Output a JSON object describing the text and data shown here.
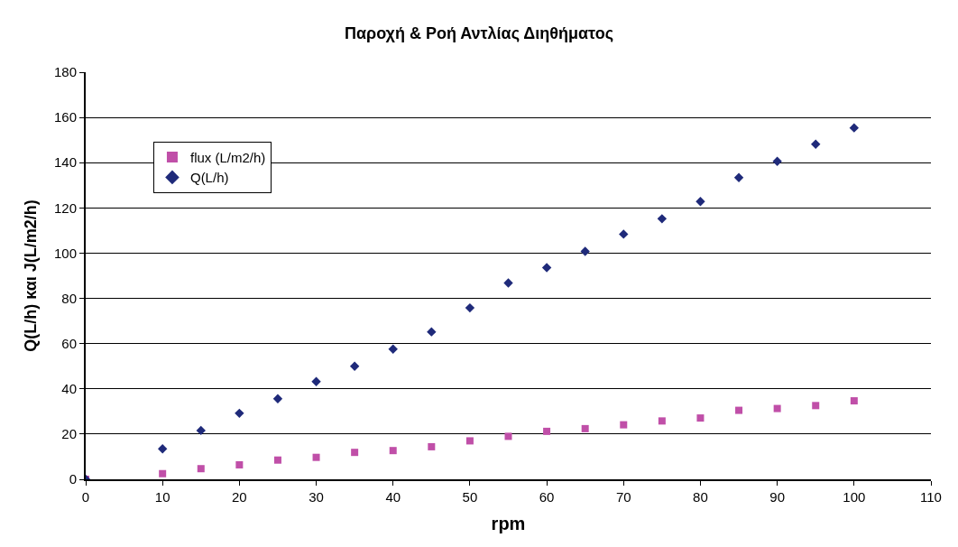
{
  "chart_data": {
    "type": "scatter",
    "title": "Παροχή & Ροή Αντλίας Διηθήματος",
    "xlabel": "rpm",
    "ylabel": "Q(L/h) και J(L/m2/h)",
    "x": [
      0,
      10,
      15,
      20,
      25,
      30,
      35,
      40,
      45,
      50,
      55,
      60,
      65,
      70,
      75,
      80,
      85,
      90,
      95,
      100
    ],
    "series": [
      {
        "name": "flux (L/m2/h)",
        "color": "#c04fa8",
        "marker": "square",
        "values": [
          0,
          2.5,
          4.7,
          6.4,
          8.5,
          9.7,
          11.9,
          12.7,
          14.4,
          17,
          19,
          21.2,
          22.4,
          24.1,
          25.8,
          27.1,
          30.5,
          31.3,
          32.6,
          34.7
        ]
      },
      {
        "name": "Q(L/h)",
        "color": "#1f2a7a",
        "marker": "diamond",
        "values": [
          0,
          13.5,
          21.6,
          29.2,
          35.6,
          43.2,
          50,
          57.6,
          65.2,
          75.8,
          86.8,
          93.6,
          100.8,
          108.4,
          115.2,
          122.8,
          133.4,
          140.6,
          148.2,
          155.4
        ]
      }
    ],
    "xlim": [
      0,
      110
    ],
    "xticks": [
      0,
      10,
      20,
      30,
      40,
      50,
      60,
      70,
      80,
      90,
      100,
      110
    ],
    "ylim": [
      0,
      180
    ],
    "yticks": [
      0,
      20,
      40,
      60,
      80,
      100,
      120,
      140,
      160,
      180
    ],
    "grid": "y",
    "legend": "top left"
  }
}
